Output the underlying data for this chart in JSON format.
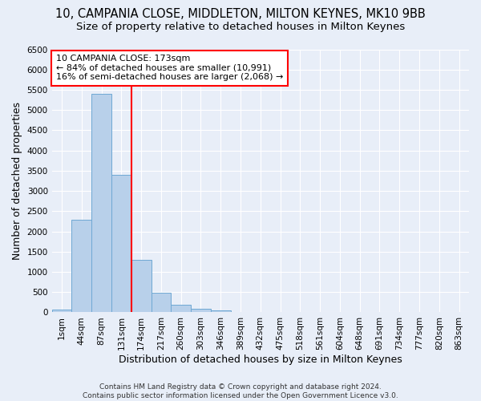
{
  "title_line1": "10, CAMPANIA CLOSE, MIDDLETON, MILTON KEYNES, MK10 9BB",
  "title_line2": "Size of property relative to detached houses in Milton Keynes",
  "xlabel": "Distribution of detached houses by size in Milton Keynes",
  "ylabel": "Number of detached properties",
  "footnote": "Contains HM Land Registry data © Crown copyright and database right 2024.\nContains public sector information licensed under the Open Government Licence v3.0.",
  "bin_labels": [
    "1sqm",
    "44sqm",
    "87sqm",
    "131sqm",
    "174sqm",
    "217sqm",
    "260sqm",
    "303sqm",
    "346sqm",
    "389sqm",
    "432sqm",
    "475sqm",
    "518sqm",
    "561sqm",
    "604sqm",
    "648sqm",
    "691sqm",
    "734sqm",
    "777sqm",
    "820sqm",
    "863sqm"
  ],
  "bar_heights": [
    75,
    2280,
    5400,
    3400,
    1300,
    480,
    185,
    80,
    55,
    0,
    0,
    0,
    0,
    0,
    0,
    0,
    0,
    0,
    0,
    0,
    0
  ],
  "bar_color": "#b8d0ea",
  "bar_edge_color": "#6fa8d4",
  "vline_x": 3.5,
  "vline_color": "red",
  "annotation_text": "10 CAMPANIA CLOSE: 173sqm\n← 84% of detached houses are smaller (10,991)\n16% of semi-detached houses are larger (2,068) →",
  "annotation_box_color": "white",
  "annotation_box_edgecolor": "red",
  "ylim": [
    0,
    6500
  ],
  "yticks": [
    0,
    500,
    1000,
    1500,
    2000,
    2500,
    3000,
    3500,
    4000,
    4500,
    5000,
    5500,
    6000,
    6500
  ],
  "bg_color": "#e8eef8",
  "grid_color": "white",
  "title_fontsize": 10.5,
  "subtitle_fontsize": 9.5,
  "axis_label_fontsize": 9,
  "tick_fontsize": 7.5,
  "footnote_fontsize": 6.5
}
